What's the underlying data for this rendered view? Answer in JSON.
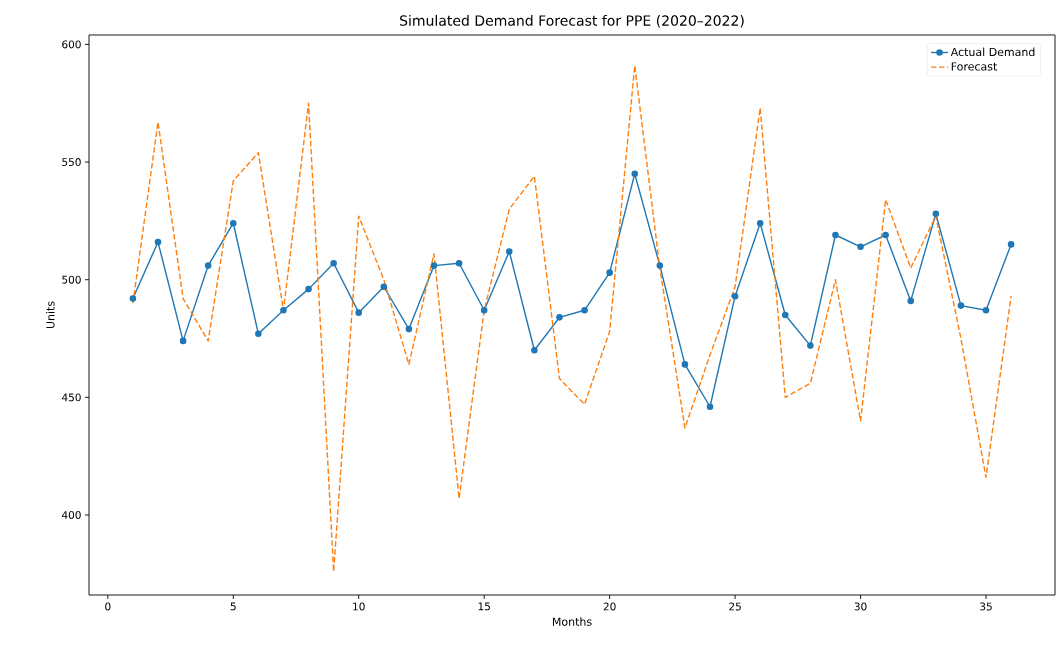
{
  "chart_data": {
    "type": "line",
    "title": "Simulated Demand Forecast for PPE (2020–2022)",
    "xlabel": "Months",
    "ylabel": "Units",
    "x": [
      1,
      2,
      3,
      4,
      5,
      6,
      7,
      8,
      9,
      10,
      11,
      12,
      13,
      14,
      15,
      16,
      17,
      18,
      19,
      20,
      21,
      22,
      23,
      24,
      25,
      26,
      27,
      28,
      29,
      30,
      31,
      32,
      33,
      34,
      35,
      36
    ],
    "series": [
      {
        "name": "Actual Demand",
        "color": "#1f77b4",
        "marker": "circle",
        "line_style": "solid",
        "values": [
          492,
          516,
          474,
          506,
          524,
          477,
          487,
          496,
          507,
          486,
          497,
          479,
          506,
          507,
          487,
          512,
          470,
          484,
          487,
          503,
          545,
          506,
          464,
          446,
          493,
          524,
          485,
          472,
          519,
          514,
          519,
          491,
          528,
          489,
          487,
          515
        ]
      },
      {
        "name": "Forecast",
        "color": "#ff7f0e",
        "marker": "none",
        "line_style": "dashed",
        "values": [
          490,
          567,
          492,
          474,
          542,
          554,
          487,
          575,
          376,
          527,
          500,
          464,
          511,
          407,
          487,
          530,
          544,
          458,
          447,
          478,
          591,
          505,
          437,
          468,
          497,
          573,
          450,
          456,
          500,
          440,
          534,
          505,
          527,
          475,
          416,
          493
        ]
      }
    ],
    "xlim": [
      -0.75,
      37.75
    ],
    "ylim": [
      366,
      604
    ],
    "xticks": [
      0,
      5,
      10,
      15,
      20,
      25,
      30,
      35
    ],
    "yticks": [
      400,
      450,
      500,
      550,
      600
    ],
    "legend": "top right"
  }
}
